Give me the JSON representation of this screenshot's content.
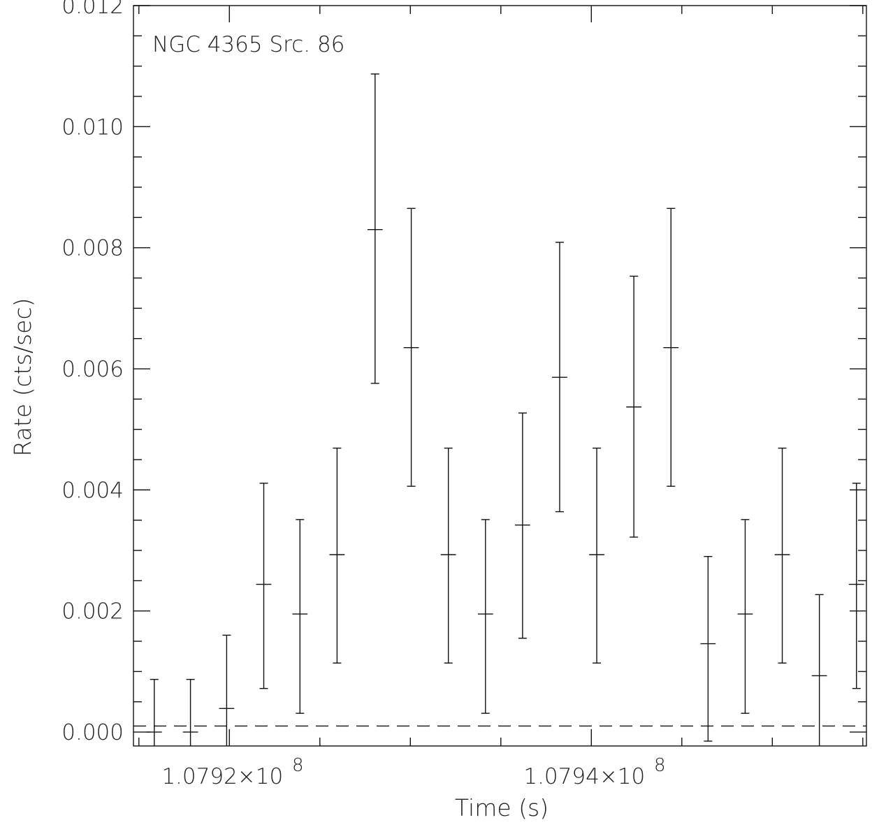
{
  "chart_data": {
    "type": "scatter",
    "annotation": "NGC 4365 Src. 86",
    "xlabel": "Time (s)",
    "ylabel": "Rate (cts/sec)",
    "x_tick_labels": [
      {
        "value": 107920000,
        "mantissa": "1.0792×10",
        "exponent": "8"
      },
      {
        "value": 107940000,
        "mantissa": "1.0794×10",
        "exponent": "8"
      }
    ],
    "y_tick_labels": [
      "0.000",
      "0.002",
      "0.004",
      "0.006",
      "0.008",
      "0.010",
      "0.012"
    ],
    "xlim": [
      107914700,
      107955200
    ],
    "ylim": [
      -0.00023,
      0.012
    ],
    "reference_line": {
      "y": 0.0001,
      "style": "dashed"
    },
    "points": [
      {
        "x": 107915850,
        "y": 0.0,
        "yerr_low": -0.00023,
        "yerr_high": 0.00087
      },
      {
        "x": 107917850,
        "y": 0.0,
        "yerr_low": -0.00023,
        "yerr_high": 0.00087
      },
      {
        "x": 107919850,
        "y": 0.00039,
        "yerr_low": -0.00023,
        "yerr_high": 0.0016
      },
      {
        "x": 107921900,
        "y": 0.00244,
        "yerr_low": 0.00072,
        "yerr_high": 0.00411
      },
      {
        "x": 107923900,
        "y": 0.00195,
        "yerr_low": 0.00031,
        "yerr_high": 0.00351
      },
      {
        "x": 107925950,
        "y": 0.00293,
        "yerr_low": 0.00114,
        "yerr_high": 0.00469
      },
      {
        "x": 107928050,
        "y": 0.0083,
        "yerr_low": 0.00576,
        "yerr_high": 0.01087
      },
      {
        "x": 107930050,
        "y": 0.00635,
        "yerr_low": 0.00406,
        "yerr_high": 0.00865
      },
      {
        "x": 107932100,
        "y": 0.00293,
        "yerr_low": 0.00114,
        "yerr_high": 0.00469
      },
      {
        "x": 107934150,
        "y": 0.00195,
        "yerr_low": 0.00031,
        "yerr_high": 0.00351
      },
      {
        "x": 107936200,
        "y": 0.00342,
        "yerr_low": 0.00155,
        "yerr_high": 0.00527
      },
      {
        "x": 107938250,
        "y": 0.00586,
        "yerr_low": 0.00364,
        "yerr_high": 0.00809
      },
      {
        "x": 107940300,
        "y": 0.00293,
        "yerr_low": 0.00114,
        "yerr_high": 0.00469
      },
      {
        "x": 107942350,
        "y": 0.00537,
        "yerr_low": 0.00322,
        "yerr_high": 0.00753
      },
      {
        "x": 107944400,
        "y": 0.00635,
        "yerr_low": 0.00406,
        "yerr_high": 0.00865
      },
      {
        "x": 107946450,
        "y": 0.00146,
        "yerr_low": -0.00015,
        "yerr_high": 0.0029
      },
      {
        "x": 107948500,
        "y": 0.00195,
        "yerr_low": 0.00031,
        "yerr_high": 0.00351
      },
      {
        "x": 107950550,
        "y": 0.00293,
        "yerr_low": 0.00114,
        "yerr_high": 0.00469
      },
      {
        "x": 107952600,
        "y": 0.00093,
        "yerr_low": -0.00023,
        "yerr_high": 0.00227
      },
      {
        "x": 107954650,
        "y": 0.00244,
        "yerr_low": 0.00072,
        "yerr_high": 0.00411
      }
    ],
    "x_halfwidth": 420,
    "grid": false
  }
}
